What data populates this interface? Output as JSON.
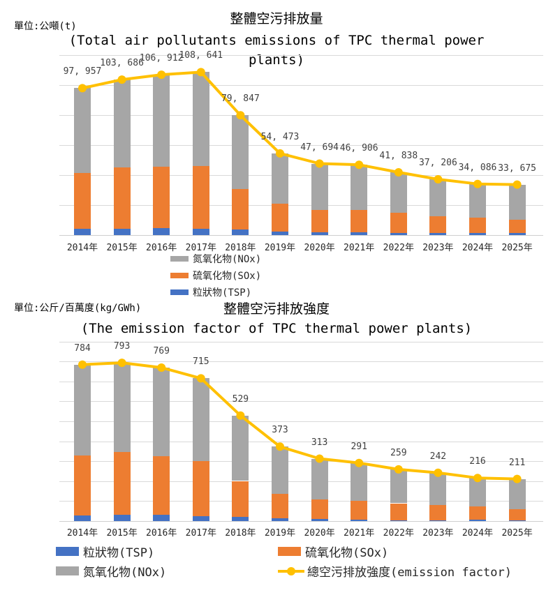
{
  "colors": {
    "tsp_blue": "#4472C4",
    "sox_orange": "#ED7D31",
    "nox_gray": "#A6A6A6",
    "line_yellow": "#FFC000",
    "gridline": "#D9D9D9",
    "data_label_text": "#404040",
    "axis_text": "#262626"
  },
  "chart_data": [
    {
      "id": "emissions-total",
      "type": "bar",
      "subtype": "stacked-bar-with-total-line",
      "unit_label": "單位:公噸(t)",
      "title": "整體空污排放量",
      "subtitle": "(Total air pollutants emissions of TPC thermal power plants)",
      "categories": [
        "2014年",
        "2015年",
        "2016年",
        "2017年",
        "2018年",
        "2019年",
        "2020年",
        "2021年",
        "2022年",
        "2023年",
        "2024年",
        "2025年"
      ],
      "totals": [
        97957,
        103686,
        106912,
        108641,
        79847,
        54473,
        47694,
        46906,
        41838,
        37206,
        34086,
        33675
      ],
      "total_labels": [
        "97, 957",
        "103, 686",
        "106, 912",
        "108, 641",
        "79, 847",
        "54, 473",
        "47, 694",
        "46, 906",
        "41, 838",
        "37, 206",
        "34, 086",
        "33, 675"
      ],
      "series": [
        {
          "name": "粒狀物(TSP)",
          "color_key": "tsp_blue",
          "estimated_from_pixels": true,
          "values": [
            4000,
            4300,
            4500,
            4300,
            3600,
            2200,
            2000,
            1900,
            1500,
            1500,
            1400,
            1300
          ]
        },
        {
          "name": "硫氧化物(SOx)",
          "color_key": "sox_orange",
          "estimated_from_pixels": true,
          "values": [
            37500,
            40800,
            40900,
            41800,
            27100,
            18900,
            14900,
            15000,
            13300,
            11300,
            10100,
            9100
          ]
        },
        {
          "name": "氮氧化物(NOx)",
          "color_key": "nox_gray",
          "estimated_from_pixels": true,
          "values": [
            56457,
            58586,
            61512,
            62541,
            49147,
            33373,
            30794,
            30006,
            27038,
            24406,
            22586,
            23275
          ]
        }
      ],
      "line": {
        "name": "total",
        "color_key": "line_yellow",
        "follows": "totals"
      },
      "legend": [
        {
          "label": "氮氧化物(NOx)",
          "color_key": "nox_gray",
          "swatch": "bar"
        },
        {
          "label": "硫氧化物(SOx)",
          "color_key": "sox_orange",
          "swatch": "bar"
        },
        {
          "label": "粒狀物(TSP)",
          "color_key": "tsp_blue",
          "swatch": "bar"
        }
      ],
      "legend_position": "bottom-center-vertical",
      "ylim": [
        0,
        120000
      ],
      "grid_step": 20000,
      "grid_on": true,
      "xlabel": "",
      "ylabel": ""
    },
    {
      "id": "emission-factor",
      "type": "bar",
      "subtype": "stacked-bar-with-total-line",
      "unit_label": "單位:公斤/百萬度(kg/GWh)",
      "title": "整體空污排放強度",
      "subtitle": "(The emission factor of TPC thermal power plants)",
      "categories": [
        "2014年",
        "2015年",
        "2016年",
        "2017年",
        "2018年",
        "2019年",
        "2020年",
        "2021年",
        "2022年",
        "2023年",
        "2024年",
        "2025年"
      ],
      "totals": [
        784,
        793,
        769,
        715,
        529,
        373,
        313,
        291,
        259,
        242,
        216,
        211
      ],
      "total_labels": [
        "784",
        "793",
        "769",
        "715",
        "529",
        "373",
        "313",
        "291",
        "259",
        "242",
        "216",
        "211"
      ],
      "series": [
        {
          "name": "粒狀物(TSP)",
          "color_key": "tsp_blue",
          "estimated_from_pixels": true,
          "values": [
            29,
            32,
            30,
            26,
            21,
            13,
            10,
            7,
            5,
            5,
            6,
            4
          ]
        },
        {
          "name": "硫氧化物(SOx)",
          "color_key": "sox_orange",
          "estimated_from_pixels": true,
          "values": [
            301,
            313,
            295,
            276,
            180,
            123,
            100,
            95,
            84,
            77,
            68,
            56
          ]
        },
        {
          "name": "氮氧化物(NOx)",
          "color_key": "nox_gray",
          "estimated_from_pixels": true,
          "values": [
            454,
            448,
            444,
            413,
            328,
            237,
            203,
            189,
            170,
            160,
            142,
            151
          ]
        }
      ],
      "line": {
        "name": "總空污排放強度(emission factor)",
        "color_key": "line_yellow",
        "follows": "totals"
      },
      "legend": [
        {
          "label": "粒狀物(TSP)",
          "color_key": "tsp_blue",
          "swatch": "bar"
        },
        {
          "label": "硫氧化物(SOx)",
          "color_key": "sox_orange",
          "swatch": "bar"
        },
        {
          "label": "氮氧化物(NOx)",
          "color_key": "nox_gray",
          "swatch": "bar"
        },
        {
          "label": "總空污排放強度(emission factor)",
          "color_key": "line_yellow",
          "swatch": "line-marker"
        }
      ],
      "legend_position": "bottom-two-columns",
      "ylim": [
        0,
        920
      ],
      "grid_step": 100,
      "grid_max": 900,
      "grid_on": true,
      "xlabel": "",
      "ylabel": ""
    }
  ]
}
